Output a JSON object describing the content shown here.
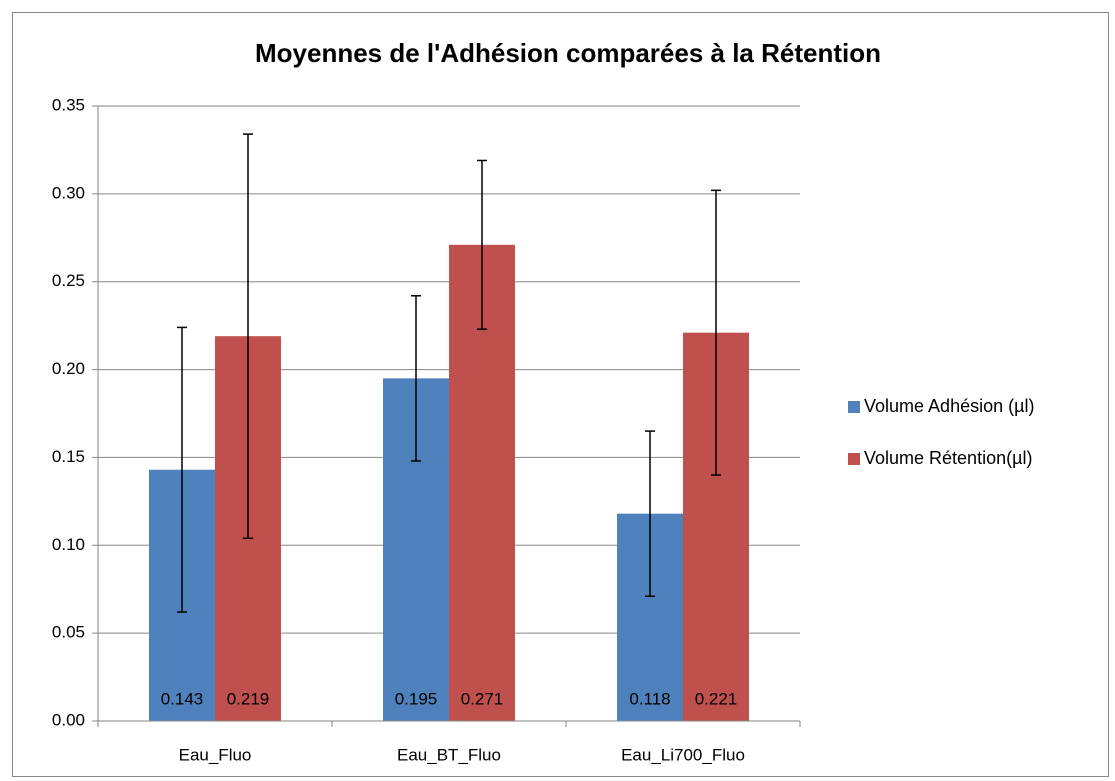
{
  "chart_data": {
    "type": "bar",
    "title": "Moyennes de l'Adhésion comparées à la Rétention",
    "categories": [
      "Eau_Fluo",
      "Eau_BT_Fluo",
      "Eau_Li700_Fluo"
    ],
    "series": [
      {
        "name": "Volume Adhésion (µl)",
        "color": "#4f81bd",
        "values": [
          0.143,
          0.195,
          0.118
        ],
        "errors": [
          0.081,
          0.047,
          0.047
        ]
      },
      {
        "name": "Volume Rétention(µl)",
        "color": "#c0504d",
        "values": [
          0.219,
          0.271,
          0.221
        ],
        "errors": [
          0.115,
          0.048,
          0.081
        ]
      }
    ],
    "ylim": [
      0,
      0.35
    ],
    "yticks": [
      {
        "value": 0,
        "label": "0.00"
      },
      {
        "value": 0.05,
        "label": "0.05"
      },
      {
        "value": 0.1,
        "label": "0.10"
      },
      {
        "value": 0.15,
        "label": "0.15"
      },
      {
        "value": 0.2,
        "label": "0.20"
      },
      {
        "value": 0.25,
        "label": "0.25"
      },
      {
        "value": 0.3,
        "label": "0.30"
      },
      {
        "value": 0.35,
        "label": "0.35"
      }
    ],
    "grid": true,
    "legend": "right"
  }
}
